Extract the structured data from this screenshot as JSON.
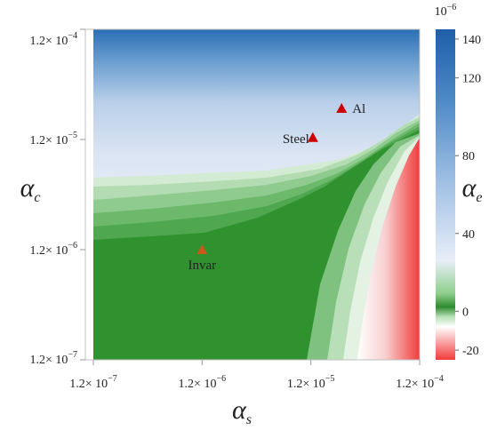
{
  "chart_data": {
    "type": "heatmap",
    "title": "",
    "xlabel": "α",
    "xlabel_sub": "s",
    "ylabel": "α",
    "ylabel_sub": "c",
    "x_scale": "log",
    "y_scale": "log",
    "xlim": [
      1.2e-07,
      0.00012
    ],
    "ylim": [
      1.2e-07,
      0.00012
    ],
    "x_ticks": [
      {
        "value": 1.2e-07,
        "label": "1.2× 10",
        "exp": "−7"
      },
      {
        "value": 1.2e-06,
        "label": "1.2× 10",
        "exp": "−6"
      },
      {
        "value": 1.2e-05,
        "label": "1.2× 10",
        "exp": "−5"
      },
      {
        "value": 0.00012,
        "label": "1.2× 10",
        "exp": "−4"
      }
    ],
    "y_ticks": [
      {
        "value": 1.2e-07,
        "label": "1.2× 10",
        "exp": "−7"
      },
      {
        "value": 1.2e-06,
        "label": "1.2× 10",
        "exp": "−6"
      },
      {
        "value": 1.2e-05,
        "label": "1.2× 10",
        "exp": "−5"
      },
      {
        "value": 0.00012,
        "label": "1.2× 10",
        "exp": "−4"
      }
    ],
    "points": [
      {
        "name": "Al",
        "x": 2.3e-05,
        "y": 2.3e-05,
        "color": "#cc0000"
      },
      {
        "name": "Steel",
        "x": 1.25e-05,
        "y": 1.25e-05,
        "color": "#cc0000"
      },
      {
        "name": "Invar",
        "x": 1.2e-06,
        "y": 1.2e-06,
        "color": "#c85a1a"
      }
    ],
    "colorbar": {
      "label": "α",
      "label_sub": "e",
      "scale_label": "10",
      "scale_exp": "−6",
      "range": [
        -25,
        145
      ],
      "ticks": [
        -20,
        0,
        40,
        80,
        120,
        140
      ],
      "colors": {
        "high": "#2166ac",
        "mid": "#dde6f4",
        "zero": "#2e8b2e",
        "low": "#f03a3a"
      }
    },
    "grid": false,
    "legend": "none"
  }
}
